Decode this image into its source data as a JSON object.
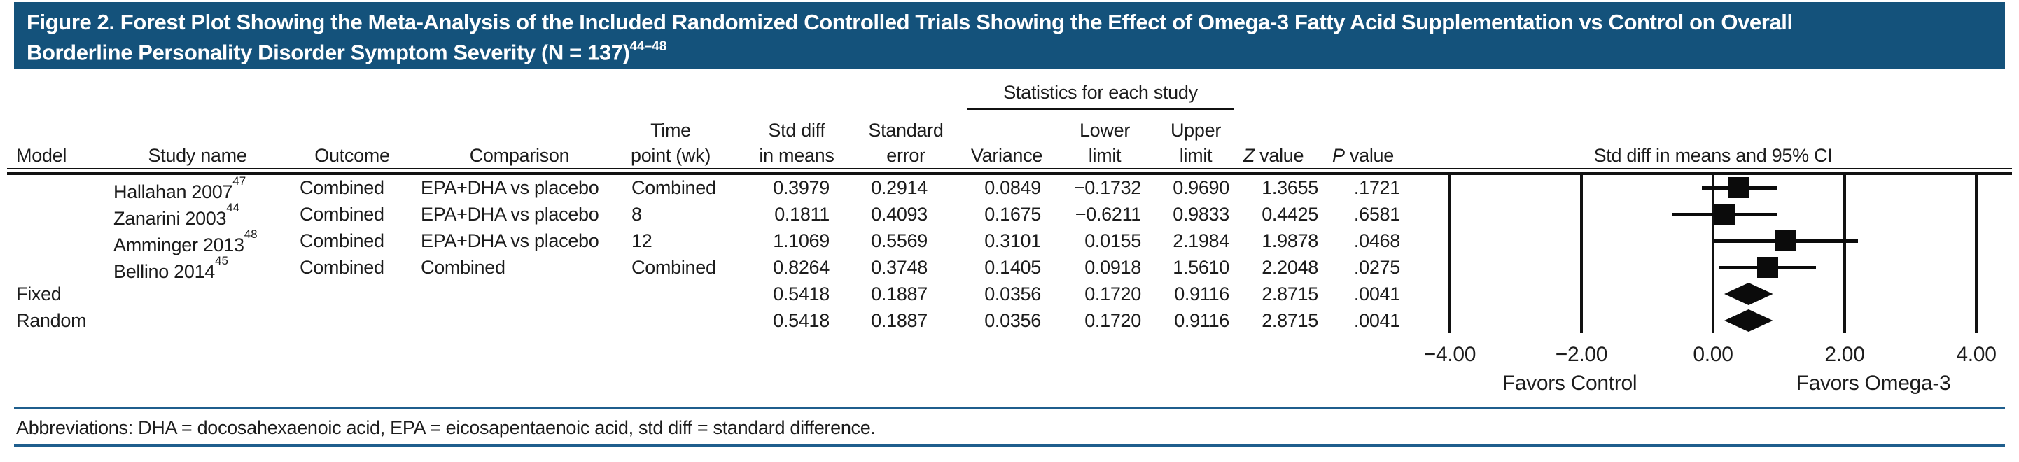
{
  "title": {
    "line1": "Figure 2. Forest Plot Showing the Meta-Analysis of the Included Randomized Controlled Trials Showing the Effect of Omega-3 Fatty Acid Supplementation vs Control on Overall",
    "line2": "Borderline Personality Disorder Symptom Severity (N = 137)",
    "refs": "44–48"
  },
  "header": {
    "stats_group": "Statistics for each study",
    "model": "Model",
    "study_name": "Study name",
    "outcome": "Outcome",
    "comparison": "Comparison",
    "time_point_l1": "Time",
    "time_point_l2": "point (wk)",
    "std_diff_l1": "Std diff",
    "std_diff_l2": "in means",
    "std_err_l1": "Standard",
    "std_err_l2": "error",
    "variance": "Variance",
    "lower_l1": "Lower",
    "lower_l2": "limit",
    "upper_l1": "Upper",
    "upper_l2": "limit",
    "z_italic": "Z",
    "z_rest": " value",
    "p_italic": "P",
    "p_rest": " value",
    "plot_header": "Std diff in means and 95% CI"
  },
  "rows": [
    {
      "model": "",
      "study": "Hallahan 2007",
      "ref": "47",
      "outcome": "Combined",
      "comparison": "EPA+DHA vs placebo",
      "time_point": "Combined",
      "std_diff": "0.3979",
      "std_err": "0.2914",
      "variance": "0.0849",
      "lower": "−0.1732",
      "upper": "0.9690",
      "z": "1.3655",
      "p": ".1721"
    },
    {
      "model": "",
      "study": "Zanarini 2003",
      "ref": "44",
      "outcome": "Combined",
      "comparison": "EPA+DHA vs placebo",
      "time_point": "8",
      "std_diff": "0.1811",
      "std_err": "0.4093",
      "variance": "0.1675",
      "lower": "−0.6211",
      "upper": "0.9833",
      "z": "0.4425",
      "p": ".6581"
    },
    {
      "model": "",
      "study": "Amminger 2013",
      "ref": "48",
      "outcome": "Combined",
      "comparison": "EPA+DHA vs placebo",
      "time_point": "12",
      "std_diff": "1.1069",
      "std_err": "0.5569",
      "variance": "0.3101",
      "lower": "0.0155",
      "upper": "2.1984",
      "z": "1.9878",
      "p": ".0468"
    },
    {
      "model": "",
      "study": "Bellino 2014",
      "ref": "45",
      "outcome": "Combined",
      "comparison": "Combined",
      "time_point": "Combined",
      "std_diff": "0.8264",
      "std_err": "0.3748",
      "variance": "0.1405",
      "lower": "0.0918",
      "upper": "1.5610",
      "z": "2.2048",
      "p": ".0275"
    },
    {
      "model": "Fixed",
      "study": "",
      "ref": "",
      "outcome": "",
      "comparison": "",
      "time_point": "",
      "std_diff": "0.5418",
      "std_err": "0.1887",
      "variance": "0.0356",
      "lower": "0.1720",
      "upper": "0.9116",
      "z": "2.8715",
      "p": ".0041"
    },
    {
      "model": "Random",
      "study": "",
      "ref": "",
      "outcome": "",
      "comparison": "",
      "time_point": "",
      "std_diff": "0.5418",
      "std_err": "0.1887",
      "variance": "0.0356",
      "lower": "0.1720",
      "upper": "0.9116",
      "z": "2.8715",
      "p": ".0041"
    }
  ],
  "footer": {
    "abbreviations": "Abbreviations: DHA = docosahexaenoic acid, EPA = eicosapentaenoic acid, std diff = standard difference."
  },
  "colors": {
    "title_bar": "#14527B",
    "rule_blue": "#1F5E8D",
    "marker_black": "#0b0b0b"
  },
  "chart_data": {
    "type": "forest",
    "effect_measure": "Std diff in means and 95% CI",
    "xlim": [
      -4,
      4
    ],
    "tick_values": [
      -4,
      -2,
      0,
      2,
      4
    ],
    "tick_labels": [
      "−4.00",
      "−2.00",
      "0.00",
      "2.00",
      "4.00"
    ],
    "favors_left": "Favors Control",
    "favors_right": "Favors Omega-3",
    "studies": [
      {
        "name": "Hallahan 2007",
        "estimate": 0.3979,
        "lower": -0.1732,
        "upper": 0.969
      },
      {
        "name": "Zanarini 2003",
        "estimate": 0.1811,
        "lower": -0.6211,
        "upper": 0.9833
      },
      {
        "name": "Amminger 2013",
        "estimate": 1.1069,
        "lower": 0.0155,
        "upper": 2.1984
      },
      {
        "name": "Bellino 2014",
        "estimate": 0.8264,
        "lower": 0.0918,
        "upper": 1.561
      }
    ],
    "summaries": [
      {
        "name": "Fixed",
        "estimate": 0.5418,
        "lower": 0.172,
        "upper": 0.9116
      },
      {
        "name": "Random",
        "estimate": 0.5418,
        "lower": 0.172,
        "upper": 0.9116
      }
    ]
  }
}
